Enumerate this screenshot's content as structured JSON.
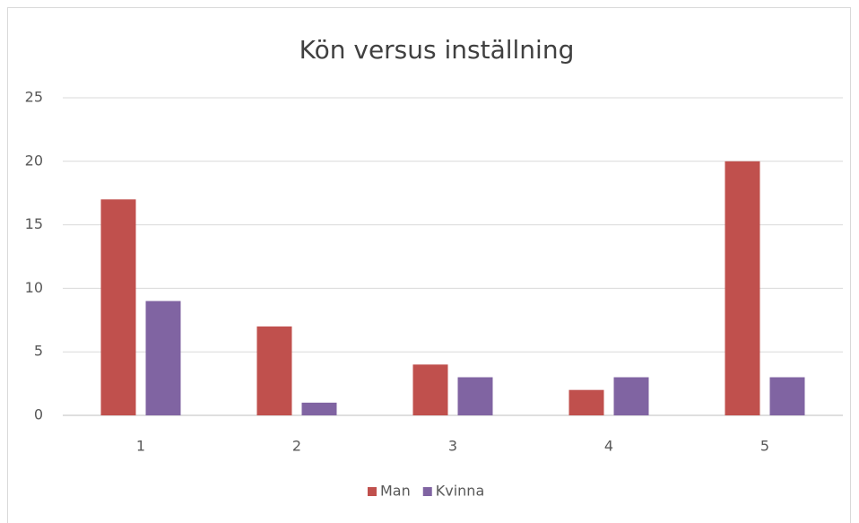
{
  "chart_data": {
    "type": "bar",
    "title": "Kön versus inställning",
    "categories": [
      "1",
      "2",
      "3",
      "4",
      "5"
    ],
    "series": [
      {
        "name": "Man",
        "color": "#c0504d",
        "values": [
          17,
          7,
          4,
          2,
          20
        ]
      },
      {
        "name": "Kvinna",
        "color": "#8064a2",
        "values": [
          9,
          1,
          3,
          3,
          3
        ]
      }
    ],
    "ylim": [
      0,
      25
    ],
    "yticks": [
      0,
      5,
      10,
      15,
      20,
      25
    ],
    "grid": true,
    "legend": "bottom"
  }
}
